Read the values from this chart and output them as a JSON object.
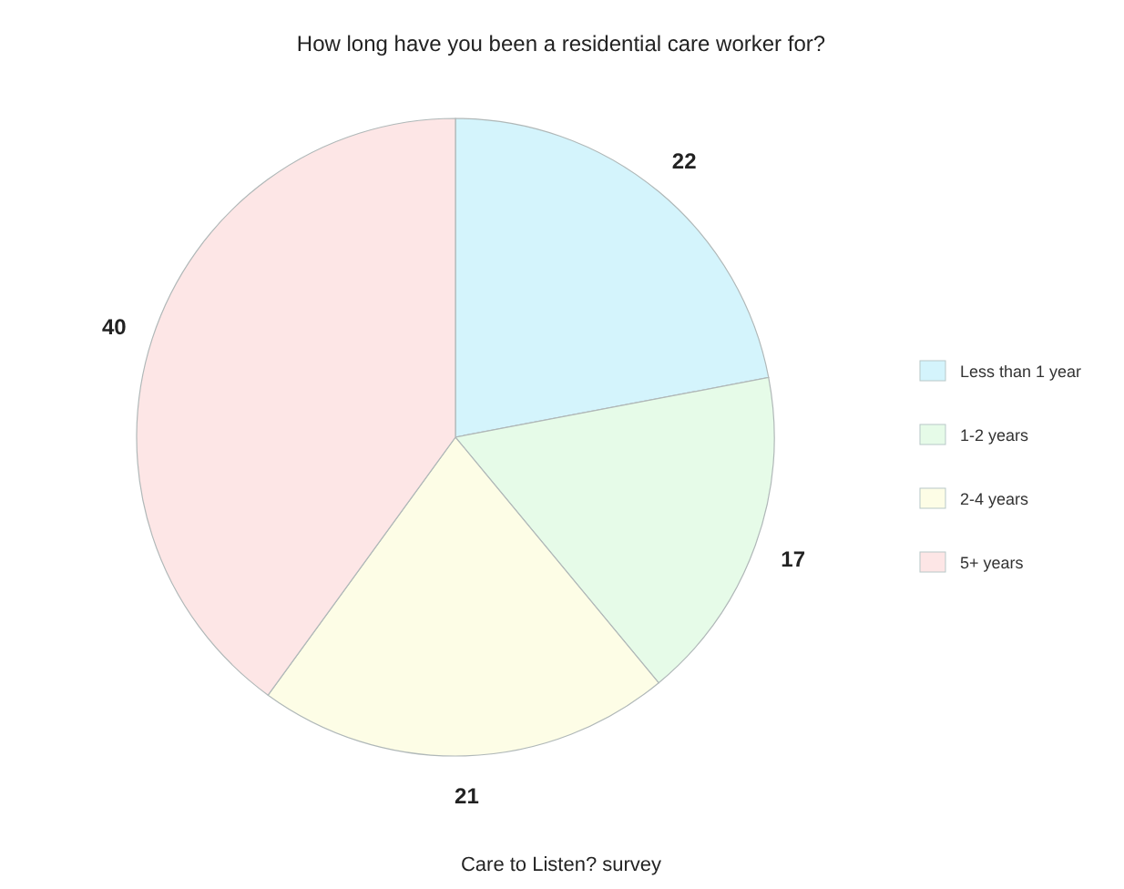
{
  "chart_data": {
    "type": "pie",
    "title": "How long have you been a residential care worker for?",
    "categories": [
      "Less than 1 year",
      "1-2 years",
      "2-4 years",
      "5+ years"
    ],
    "values": [
      22,
      17,
      21,
      40
    ],
    "colors": [
      "#d4f4fc",
      "#e6fbe8",
      "#fdfde6",
      "#fde6e6"
    ],
    "data_labels": true,
    "legend": "right",
    "annotations": [
      "Care to Listen? survey"
    ]
  }
}
